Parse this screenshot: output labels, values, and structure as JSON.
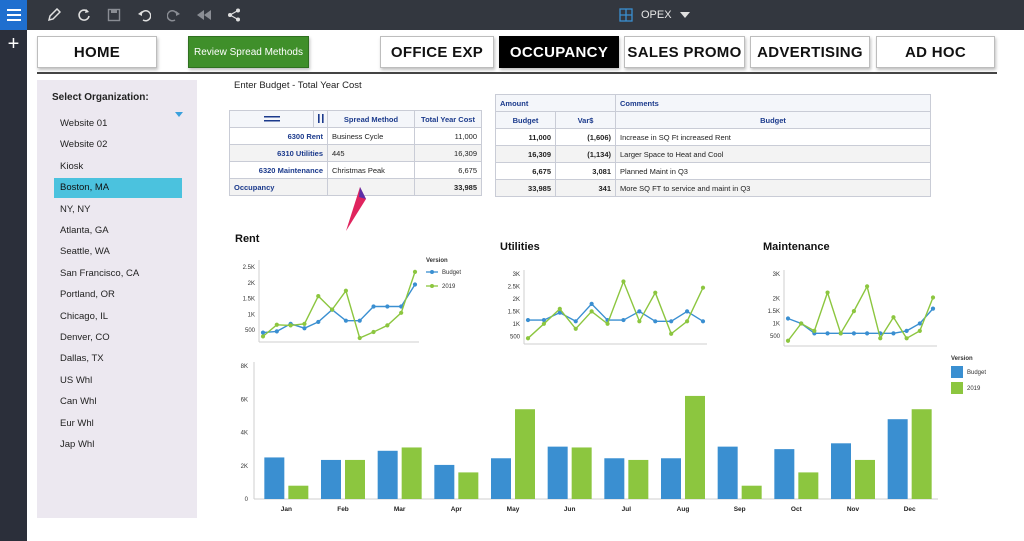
{
  "toolbar": {
    "icons": [
      "pencil-icon",
      "refresh-icon",
      "save-icon",
      "undo-icon",
      "redo-icon",
      "rewind-icon",
      "share-icon"
    ],
    "cube_label": "OPEX"
  },
  "nav": {
    "home": "HOME",
    "review": "Review Spread Methods",
    "office": "OFFICE EXP",
    "occupancy": "OCCUPANCY",
    "sales": "SALES PROMO",
    "advertising": "ADVERTISING",
    "adhoc": "AD HOC"
  },
  "org": {
    "title": "Select Organization:",
    "items": [
      "Website 01",
      "Website 02",
      "Kiosk",
      "Boston, MA",
      "NY, NY",
      "Atlanta, GA",
      "Seattle, WA",
      "San Francisco, CA",
      "Portland, OR",
      "Chicago, IL",
      "Denver, CO",
      "Dallas, TX",
      "US Whl",
      "Can Whl",
      "Eur Whl",
      "Jap Whl"
    ],
    "selected": "Boston, MA"
  },
  "budget": {
    "caption": "Enter Budget - Total Year Cost",
    "headers": {
      "spread": "Spread Method",
      "total": "Total Year Cost"
    },
    "rows": [
      {
        "account": "6300 Rent",
        "spread": "Business Cycle",
        "total": "11,000"
      },
      {
        "account": "6310 Utilities",
        "spread": "445",
        "total": "16,309"
      },
      {
        "account": "6320 Maintenance",
        "spread": "Christmas Peak",
        "total": "6,675"
      }
    ],
    "total_row": {
      "label": "Occupancy",
      "total": "33,985"
    }
  },
  "comments_table": {
    "group_headers": {
      "amount": "Amount",
      "comments": "Comments"
    },
    "headers": {
      "budget": "Budget",
      "var": "Var$",
      "budget_col": "Budget"
    },
    "rows": [
      {
        "budget": "11,000",
        "var": "(1,606)",
        "comment": "Increase in SQ Ft increased Rent"
      },
      {
        "budget": "16,309",
        "var": "(1,134)",
        "comment": "Larger Space to Heat and Cool"
      },
      {
        "budget": "6,675",
        "var": "3,081",
        "comment": "Planned Maint in Q3"
      },
      {
        "budget": "33,985",
        "var": "341",
        "comment": "More SQ FT to service and maint in Q3"
      }
    ]
  },
  "colors": {
    "budget": "#3a8fd1",
    "y2019": "#8cc63f",
    "selected": "#4bc2de",
    "nav_active": "#000000",
    "review": "#3f8f2a"
  },
  "chart_data": [
    {
      "type": "line",
      "title": "Rent",
      "x": [
        "Jan",
        "Feb",
        "Mar",
        "Apr",
        "May",
        "Jun",
        "Jul",
        "Aug",
        "Sep",
        "Oct",
        "Nov",
        "Dec"
      ],
      "yticks": [
        "500",
        "1K",
        "1.5K",
        "2K",
        "2.5K"
      ],
      "ylim": [
        250,
        2600
      ],
      "legend_title": "Version",
      "series": [
        {
          "name": "Budget",
          "values": [
            420,
            460,
            700,
            560,
            760,
            1150,
            800,
            800,
            1250,
            1250,
            1250,
            1950
          ]
        },
        {
          "name": "2019",
          "values": [
            300,
            670,
            650,
            700,
            1580,
            1150,
            1750,
            250,
            440,
            650,
            1050,
            2350
          ]
        }
      ]
    },
    {
      "type": "line",
      "title": "Utilities",
      "x": [
        "Jan",
        "Feb",
        "Mar",
        "Apr",
        "May",
        "Jun",
        "Jul",
        "Aug",
        "Sep",
        "Oct",
        "Nov",
        "Dec"
      ],
      "yticks": [
        "500",
        "1K",
        "1.5K",
        "2K",
        "2.5K",
        "3K"
      ],
      "ylim": [
        350,
        3000
      ],
      "series": [
        {
          "name": "Budget",
          "values": [
            1150,
            1150,
            1450,
            1100,
            1800,
            1150,
            1150,
            1500,
            1100,
            1100,
            1500,
            1100
          ]
        },
        {
          "name": "2019",
          "values": [
            420,
            1000,
            1600,
            800,
            1500,
            1000,
            2700,
            1100,
            2250,
            600,
            1100,
            2450
          ]
        }
      ]
    },
    {
      "type": "line",
      "title": "Maintenance",
      "x": [
        "Jan",
        "Feb",
        "Mar",
        "Apr",
        "May",
        "Jun",
        "Jul",
        "Aug",
        "Sep",
        "Oct",
        "Nov",
        "Dec"
      ],
      "yticks": [
        "500",
        "1K",
        "1.5K",
        "2K",
        "3K"
      ],
      "ylim": [
        250,
        3000
      ],
      "series": [
        {
          "name": "Budget",
          "values": [
            1200,
            1000,
            600,
            600,
            600,
            600,
            600,
            600,
            600,
            700,
            1000,
            1600
          ]
        },
        {
          "name": "2019",
          "values": [
            300,
            1000,
            700,
            2250,
            600,
            1500,
            2500,
            400,
            1250,
            400,
            700,
            2050
          ]
        }
      ]
    },
    {
      "type": "bar",
      "x": [
        "Jan",
        "Feb",
        "Mar",
        "Apr",
        "May",
        "Jun",
        "Jul",
        "Aug",
        "Sep",
        "Oct",
        "Nov",
        "Dec"
      ],
      "yticks": [
        "0",
        "2K",
        "4K",
        "6K",
        "8K"
      ],
      "ylim": [
        0,
        8000
      ],
      "legend_title": "Version",
      "series": [
        {
          "name": "Budget",
          "values": [
            2500,
            2350,
            2900,
            2050,
            2450,
            3150,
            2450,
            2450,
            3150,
            3000,
            3350,
            4800
          ]
        },
        {
          "name": "2019",
          "values": [
            800,
            2350,
            3100,
            1600,
            5400,
            3100,
            2350,
            6200,
            800,
            1600,
            2350,
            5400
          ]
        }
      ]
    }
  ]
}
